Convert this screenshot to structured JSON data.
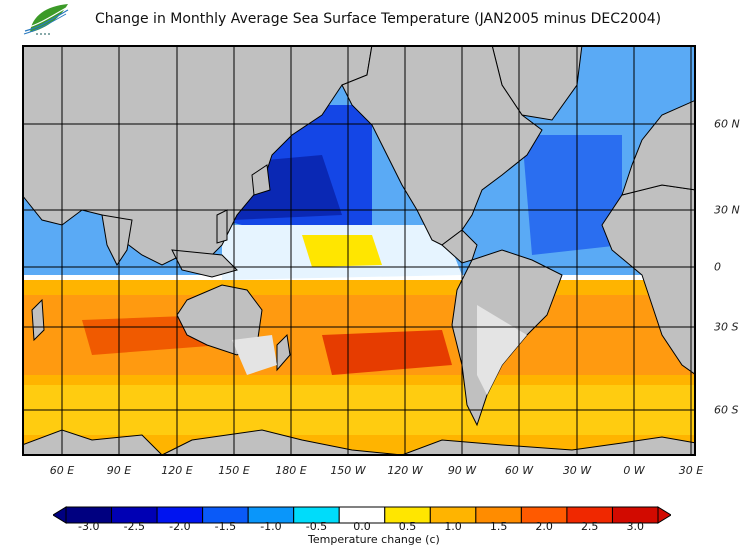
{
  "title": "Change in Monthly Average Sea Surface Temperature (JAN2005 minus DEC2004)",
  "logo": {
    "icon": "leaf-logo-icon",
    "text": "農業委員會"
  },
  "map": {
    "land_color": "#c0c0c0",
    "ice_color": "#e4e4e4",
    "grid_color": "#000000",
    "x_labels": [
      "60 E",
      "90 E",
      "120 E",
      "150 E",
      "180 E",
      "150 W",
      "120 W",
      "90 W",
      "60 W",
      "30 W",
      "0 W",
      "30 E"
    ],
    "y_labels": [
      "60 N",
      "30 N",
      "0",
      "30 S",
      "60 S"
    ]
  },
  "colorbar": {
    "title": "Temperature change  (c)",
    "tick_labels": [
      "-3.0",
      "-2.5",
      "-2.0",
      "-1.5",
      "-1.0",
      "-0.5",
      "0.0",
      "0.5",
      "1.0",
      "1.5",
      "2.0",
      "2.5",
      "3.0"
    ],
    "colors": [
      "#000080",
      "#0000b4",
      "#0014f0",
      "#0a5af8",
      "#0a96fa",
      "#00dcfa",
      "#ffffff",
      "#ffe600",
      "#ffb400",
      "#ff8c00",
      "#ff5a00",
      "#f02800",
      "#d20a00"
    ],
    "under_color": "#000080",
    "over_color": "#d20a00"
  }
}
